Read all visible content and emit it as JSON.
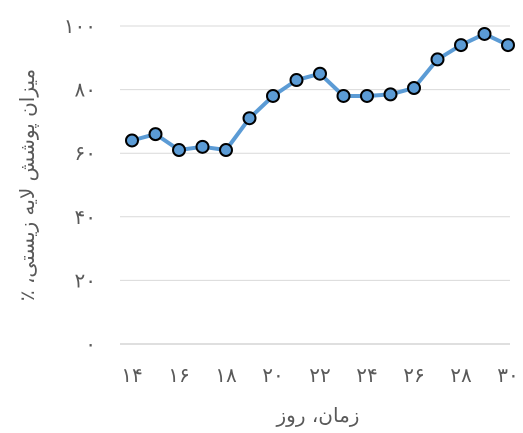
{
  "chart_data": {
    "type": "line",
    "title": "",
    "xlabel": "زمان، روز",
    "ylabel": "میزان پوشش لایه زیستی، ٪",
    "x": [
      14,
      15,
      16,
      17,
      18,
      19,
      20,
      21,
      22,
      23,
      24,
      25,
      26,
      27,
      28,
      29,
      30
    ],
    "xlim": [
      14,
      30
    ],
    "x_ticks": [
      {
        "value": 14,
        "label": "۱۴"
      },
      {
        "value": 16,
        "label": "۱۶"
      },
      {
        "value": 18,
        "label": "۱۸"
      },
      {
        "value": 20,
        "label": "۲۰"
      },
      {
        "value": 22,
        "label": "۲۲"
      },
      {
        "value": 24,
        "label": "۲۴"
      },
      {
        "value": 26,
        "label": "۲۶"
      },
      {
        "value": 28,
        "label": "۲۸"
      },
      {
        "value": 30,
        "label": "۳۰"
      }
    ],
    "ylim": [
      0,
      100
    ],
    "y_ticks": [
      {
        "value": 0,
        "label": "۰"
      },
      {
        "value": 20,
        "label": "۲۰"
      },
      {
        "value": 40,
        "label": "۴۰"
      },
      {
        "value": 60,
        "label": "۶۰"
      },
      {
        "value": 80,
        "label": "۸۰"
      },
      {
        "value": 100,
        "label": "۱۰۰"
      }
    ],
    "grid": "horizontal",
    "legend": "none",
    "series": [
      {
        "values": [
          64,
          66,
          61,
          62,
          61,
          71,
          78,
          83,
          85,
          78,
          78,
          78.5,
          80.5,
          89.5,
          94,
          97.5,
          94
        ],
        "color": "#5b9bd5",
        "marker_fill": "#5b9bd5",
        "marker_edge": "#000000"
      }
    ]
  }
}
